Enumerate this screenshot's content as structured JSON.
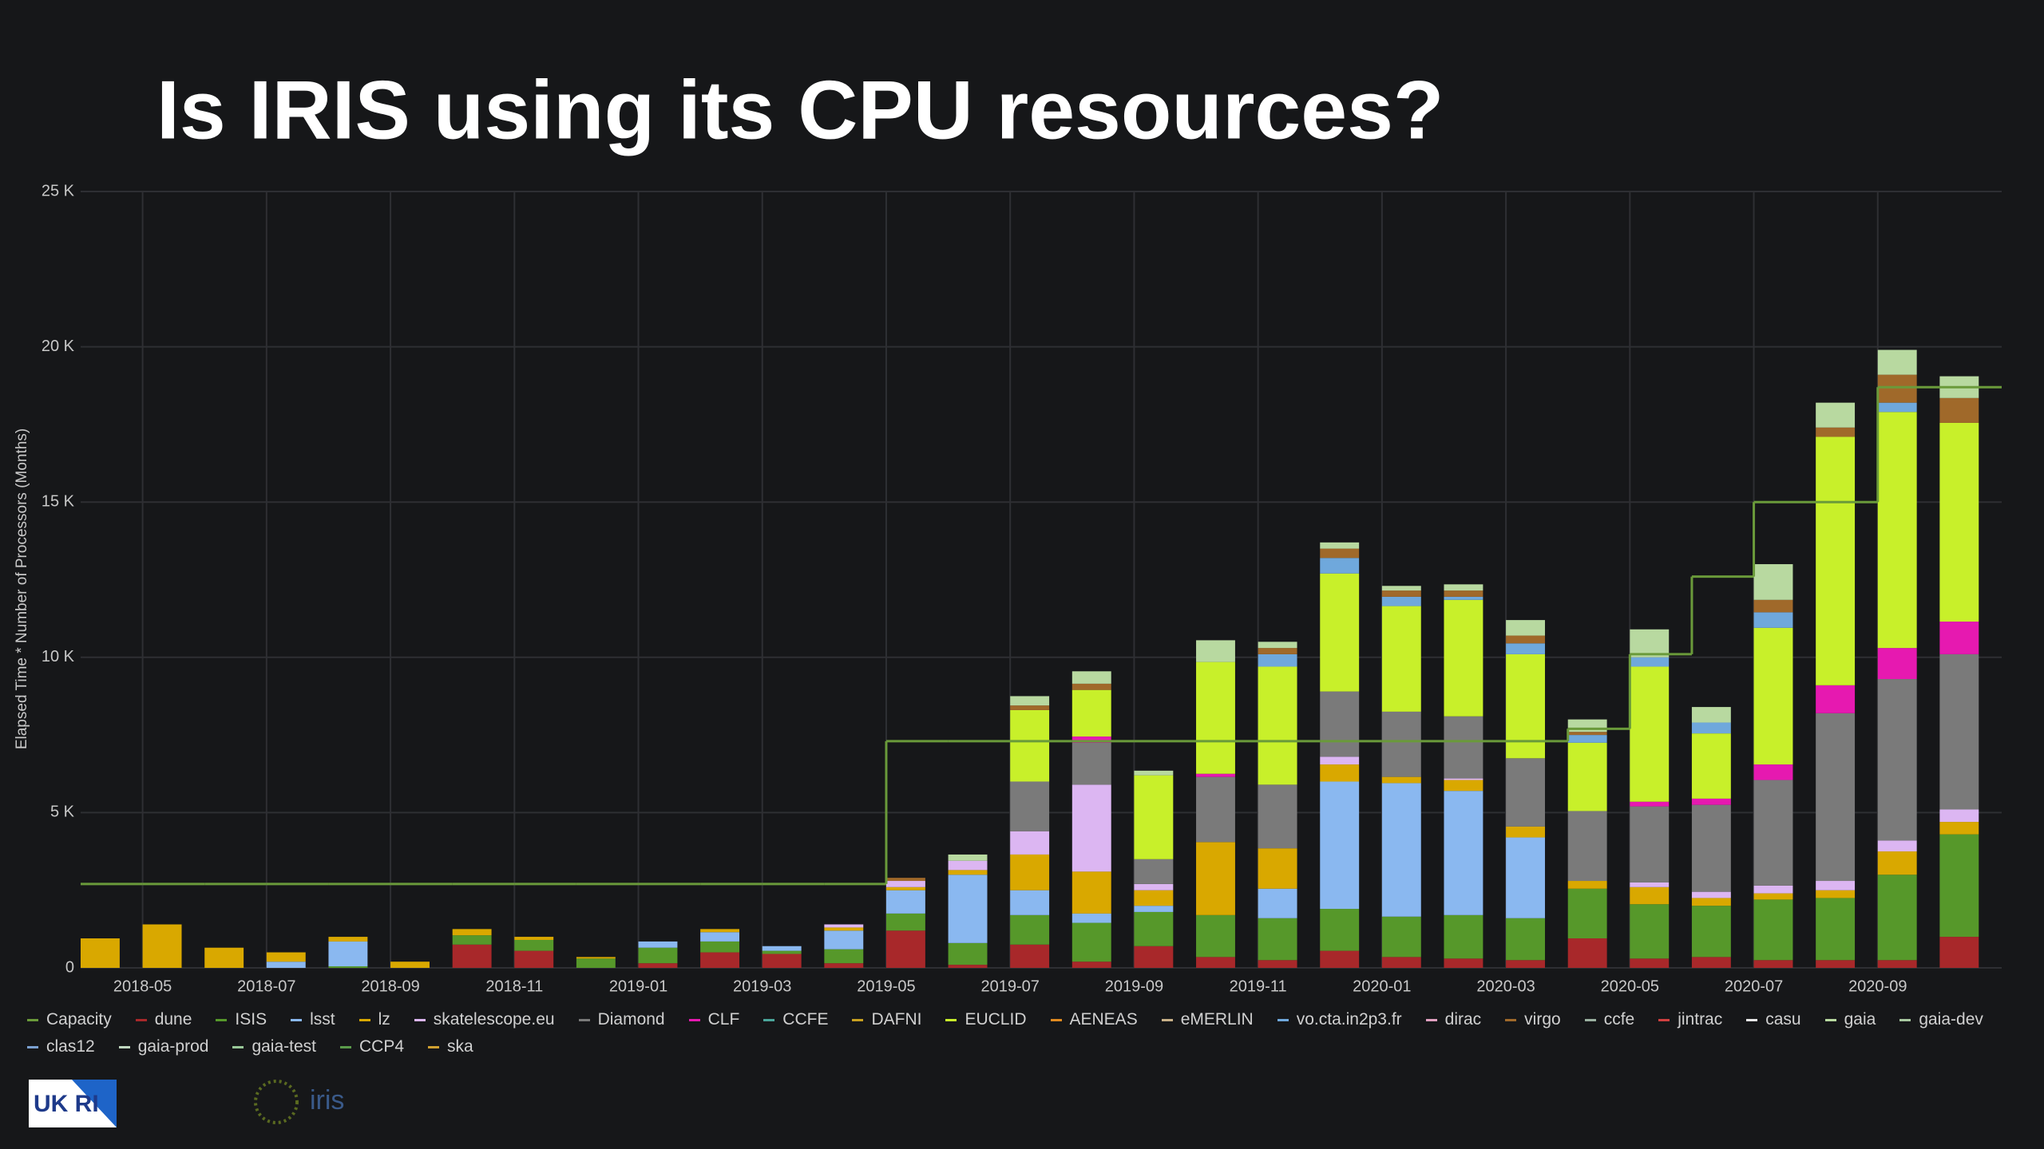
{
  "chart_data": {
    "type": "bar",
    "stacked": true,
    "title": "Is IRIS using its CPU resources?",
    "y_label": "Elapsed Time * Number of Processors (Months)",
    "categories": [
      null,
      "2018-05",
      null,
      "2018-07",
      null,
      "2018-09",
      null,
      "2018-11",
      null,
      "2019-01",
      null,
      "2019-03",
      null,
      "2019-05",
      null,
      "2019-07",
      null,
      "2019-09",
      null,
      "2019-11",
      null,
      "2020-01",
      null,
      "2020-03",
      null,
      "2020-05",
      null,
      "2020-07",
      null,
      "2020-09",
      null
    ],
    "ylim": [
      0,
      25000
    ],
    "yticks": [
      0,
      {
        "value": 5000,
        "label": "5 K"
      },
      {
        "value": 10000,
        "label": "10 K"
      },
      {
        "value": 15000,
        "label": "15 K"
      },
      {
        "value": 20000,
        "label": "20 K"
      },
      {
        "value": 25000,
        "label": "25 K"
      }
    ],
    "grid": true,
    "legend": "bottom",
    "series": [
      {
        "name": "Capacity",
        "type": "line",
        "color": "#6a9a3a",
        "values": [
          2700,
          2700,
          2700,
          2700,
          2700,
          2700,
          2700,
          2700,
          2700,
          2700,
          2700,
          2700,
          2700,
          7300,
          7300,
          7300,
          7300,
          7300,
          7300,
          7300,
          7300,
          7300,
          7300,
          7300,
          7700,
          10100,
          12600,
          15000,
          15000,
          18700,
          18700
        ]
      },
      {
        "name": "dune",
        "color": "#a8282a",
        "values": [
          0,
          0,
          0,
          0,
          0,
          0,
          750,
          550,
          0,
          150,
          500,
          450,
          150,
          1200,
          100,
          750,
          200,
          700,
          350,
          250,
          550,
          350,
          300,
          250,
          950,
          300,
          350,
          250,
          250,
          250,
          1000
        ]
      },
      {
        "name": "ISIS",
        "color": "#56982a",
        "values": [
          0,
          0,
          0,
          0,
          50,
          0,
          300,
          350,
          300,
          500,
          350,
          100,
          450,
          550,
          700,
          950,
          1250,
          1100,
          1350,
          1350,
          1350,
          1300,
          1400,
          1350,
          1600,
          1750,
          1650,
          1950,
          2000,
          2750,
          3300
        ]
      },
      {
        "name": "lsst",
        "color": "#8ab8f0",
        "values": [
          0,
          0,
          0,
          200,
          800,
          0,
          0,
          0,
          0,
          200,
          300,
          150,
          600,
          750,
          2200,
          800,
          300,
          200,
          0,
          950,
          4100,
          4300,
          4000,
          2600,
          0,
          0,
          0,
          0,
          0,
          0,
          0
        ]
      },
      {
        "name": "lz",
        "color": "#d9a800",
        "values": [
          950,
          1400,
          650,
          300,
          150,
          200,
          200,
          100,
          50,
          0,
          100,
          0,
          100,
          100,
          150,
          1150,
          1350,
          500,
          2350,
          1300,
          550,
          200,
          350,
          350,
          250,
          550,
          250,
          200,
          250,
          750,
          400
        ]
      },
      {
        "name": "skatelescope.eu",
        "color": "#dcb6f2",
        "values": [
          0,
          0,
          0,
          0,
          0,
          0,
          0,
          0,
          0,
          0,
          0,
          0,
          100,
          200,
          300,
          750,
          2800,
          200,
          0,
          0,
          250,
          0,
          50,
          0,
          0,
          150,
          200,
          250,
          300,
          350,
          400
        ]
      },
      {
        "name": "Diamond",
        "color": "#7a7a7a",
        "values": [
          0,
          0,
          0,
          0,
          0,
          0,
          0,
          0,
          0,
          0,
          0,
          0,
          0,
          0,
          0,
          1600,
          1350,
          800,
          2100,
          2050,
          2100,
          2100,
          2000,
          2200,
          2250,
          2450,
          2800,
          3400,
          5400,
          5200,
          5000
        ]
      },
      {
        "name": "CLF",
        "color": "#e619b0",
        "values": [
          0,
          0,
          0,
          0,
          0,
          0,
          0,
          0,
          0,
          0,
          0,
          0,
          0,
          0,
          0,
          0,
          200,
          0,
          100,
          0,
          0,
          0,
          0,
          0,
          0,
          150,
          200,
          500,
          900,
          1000,
          1050
        ]
      },
      {
        "name": "CCFE",
        "color": "#4aa59a"
      },
      {
        "name": "DAFNI",
        "color": "#c8a020"
      },
      {
        "name": "EUCLID",
        "color": "#c8f02a",
        "values": [
          0,
          0,
          0,
          0,
          0,
          0,
          0,
          0,
          0,
          0,
          0,
          0,
          0,
          0,
          0,
          2300,
          1500,
          2700,
          3600,
          3800,
          3800,
          3400,
          3750,
          3350,
          2200,
          4350,
          2100,
          4400,
          8000,
          7600,
          6400
        ]
      },
      {
        "name": "AENEAS",
        "color": "#e08a20"
      },
      {
        "name": "eMERLIN",
        "color": "#c8b088"
      },
      {
        "name": "vo.cta.in2p3.fr",
        "color": "#6fa8dc",
        "values": [
          0,
          0,
          0,
          0,
          0,
          0,
          0,
          0,
          0,
          0,
          0,
          0,
          0,
          0,
          0,
          0,
          0,
          0,
          0,
          400,
          500,
          300,
          100,
          350,
          250,
          300,
          350,
          500,
          0,
          300,
          0
        ]
      },
      {
        "name": "dirac",
        "color": "#e0a0c0"
      },
      {
        "name": "virgo",
        "color": "#a0692a",
        "values": [
          0,
          0,
          0,
          0,
          0,
          0,
          0,
          0,
          0,
          0,
          0,
          0,
          0,
          100,
          0,
          150,
          200,
          0,
          0,
          200,
          300,
          200,
          200,
          250,
          100,
          0,
          0,
          400,
          300,
          900,
          800
        ]
      },
      {
        "name": "ccfe",
        "color": "#9ab0a0"
      },
      {
        "name": "jintrac",
        "color": "#d04040"
      },
      {
        "name": "casu",
        "color": "#e8e8e8"
      },
      {
        "name": "gaia",
        "color": "#b8d9a0",
        "values": [
          0,
          0,
          0,
          0,
          0,
          0,
          0,
          0,
          0,
          0,
          0,
          0,
          0,
          0,
          200,
          300,
          400,
          150,
          700,
          200,
          200,
          150,
          200,
          500,
          400,
          900,
          500,
          1150,
          800,
          800,
          700
        ]
      },
      {
        "name": "gaia-dev",
        "color": "#a8c8a0"
      },
      {
        "name": "clas12",
        "color": "#7aa0d0"
      },
      {
        "name": "gaia-prod",
        "color": "#c0d8c0"
      },
      {
        "name": "gaia-test",
        "color": "#98c898"
      },
      {
        "name": "CCP4",
        "color": "#5a9a4a"
      },
      {
        "name": "ska",
        "color": "#d0a030"
      }
    ]
  },
  "footer": {
    "ukri": "UK RI",
    "iris": "iris"
  }
}
